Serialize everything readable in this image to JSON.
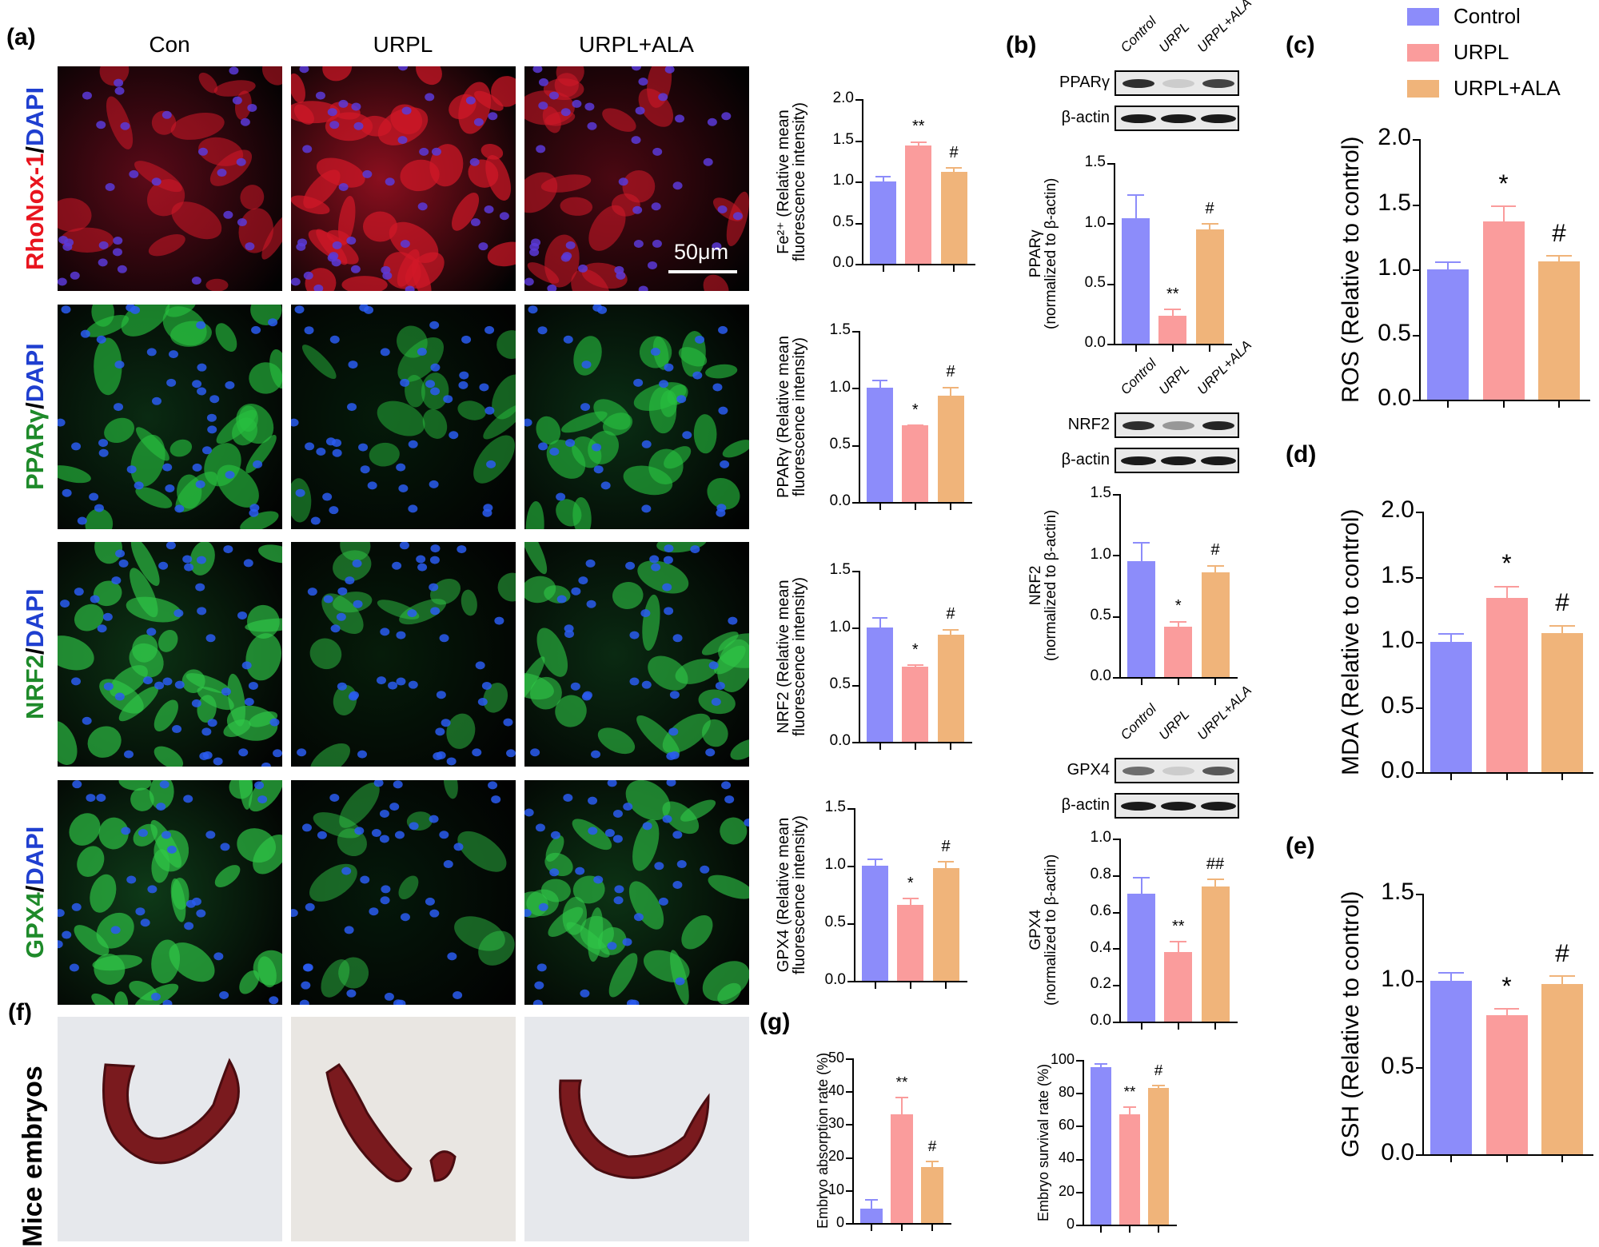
{
  "colors": {
    "control": "#8c8cfa",
    "urpl": "#fa9c9c",
    "urpl_ala": "#f0b47a"
  },
  "panel_letters": {
    "a": "(a)",
    "b": "(b)",
    "c": "(c)",
    "d": "(d)",
    "e": "(e)",
    "f": "(f)",
    "g": "(g)"
  },
  "panel_a": {
    "column_headers": [
      "Con",
      "URPL",
      "URPL+ALA"
    ],
    "row_labels": [
      {
        "stain": "RhoNox-1",
        "stain_color": "#e8141e",
        "counter": "DAPI",
        "counter_color": "#1f3fd0"
      },
      {
        "stain": "PPARγ",
        "stain_color": "#1e8a2a",
        "counter": "DAPI",
        "counter_color": "#1f3fd0"
      },
      {
        "stain": "NRF2",
        "stain_color": "#1e8a2a",
        "counter": "DAPI",
        "counter_color": "#1f3fd0"
      },
      {
        "stain": "GPX4",
        "stain_color": "#1e8a2a",
        "counter": "DAPI",
        "counter_color": "#1f3fd0"
      }
    ],
    "separator": "/",
    "scale_bar": "50μm"
  },
  "panel_b": {
    "lane_labels": [
      "Control",
      "URPL",
      "URPL+ALA"
    ],
    "blots": [
      {
        "target": "PPARγ",
        "loading": "β-actin",
        "band_intensity": [
          0.9,
          0.15,
          0.8
        ]
      },
      {
        "target": "NRF2",
        "loading": "β-actin",
        "band_intensity": [
          0.9,
          0.4,
          0.95
        ]
      },
      {
        "target": "GPX4",
        "loading": "β-actin",
        "band_intensity": [
          0.6,
          0.15,
          0.7
        ]
      }
    ]
  },
  "panel_f": {
    "row_label": "Mice embryos"
  },
  "legend": [
    {
      "label": "Control",
      "color": "#8c8cfa"
    },
    {
      "label": "URPL",
      "color": "#fa9c9c"
    },
    {
      "label": "URPL+ALA",
      "color": "#f0b47a"
    }
  ],
  "chart_data": [
    {
      "id": "fe2",
      "panel": "a",
      "type": "bar",
      "categories": [
        "Control",
        "URPL",
        "URPL+ALA"
      ],
      "values": [
        1.0,
        1.44,
        1.12
      ],
      "errors_upper": [
        1.07,
        1.49,
        1.17
      ],
      "significance": [
        "",
        "**",
        "#"
      ],
      "ylabel_lines": [
        "Fe²⁺ (Relative mean",
        "fluorescence intensity)"
      ],
      "ylim": [
        0,
        2.0
      ],
      "yticks": [
        "0.0",
        "0.5",
        "1.0",
        "1.5",
        "2.0"
      ],
      "grid": false
    },
    {
      "id": "ppar_if",
      "panel": "a",
      "type": "bar",
      "categories": [
        "Control",
        "URPL",
        "URPL+ALA"
      ],
      "values": [
        1.0,
        0.67,
        0.93
      ],
      "errors_upper": [
        1.07,
        0.68,
        1.01
      ],
      "significance": [
        "",
        "*",
        "#"
      ],
      "ylabel_lines": [
        "PPARγ (Relative mean",
        "fluorescence intensity)"
      ],
      "ylim": [
        0,
        1.5
      ],
      "yticks": [
        "0.0",
        "0.5",
        "1.0",
        "1.5"
      ],
      "grid": false
    },
    {
      "id": "nrf2_if",
      "panel": "a",
      "type": "bar",
      "categories": [
        "Control",
        "URPL",
        "URPL+ALA"
      ],
      "values": [
        1.0,
        0.66,
        0.94
      ],
      "errors_upper": [
        1.09,
        0.68,
        0.99
      ],
      "significance": [
        "",
        "*",
        "#"
      ],
      "ylabel_lines": [
        "NRF2 (Relative mean",
        "fluorescence intensity)"
      ],
      "ylim": [
        0,
        1.5
      ],
      "yticks": [
        "0.0",
        "0.5",
        "1.0",
        "1.5"
      ],
      "grid": false
    },
    {
      "id": "gpx4_if",
      "panel": "a",
      "type": "bar",
      "categories": [
        "Control",
        "URPL",
        "URPL+ALA"
      ],
      "values": [
        1.0,
        0.66,
        0.98
      ],
      "errors_upper": [
        1.06,
        0.72,
        1.04
      ],
      "significance": [
        "",
        "*",
        "#"
      ],
      "ylabel_lines": [
        "GPX4 (Relative mean",
        "fluorescence intensity)"
      ],
      "ylim": [
        0,
        1.5
      ],
      "yticks": [
        "0.0",
        "0.5",
        "1.0",
        "1.5"
      ],
      "grid": false
    },
    {
      "id": "ppar_wb",
      "panel": "b",
      "type": "bar",
      "categories": [
        "Control",
        "URPL",
        "URPL+ALA"
      ],
      "values": [
        1.04,
        0.23,
        0.95
      ],
      "errors_upper": [
        1.24,
        0.29,
        1.0
      ],
      "significance": [
        "",
        "**",
        "#"
      ],
      "ylabel_lines": [
        "PPARγ",
        "(normalized to β-actin)"
      ],
      "ylim": [
        0,
        1.5
      ],
      "yticks": [
        "0.0",
        "0.5",
        "1.0",
        "1.5"
      ],
      "grid": false
    },
    {
      "id": "nrf2_wb",
      "panel": "b",
      "type": "bar",
      "categories": [
        "Control",
        "URPL",
        "URPL+ALA"
      ],
      "values": [
        0.95,
        0.41,
        0.86
      ],
      "errors_upper": [
        1.11,
        0.46,
        0.92
      ],
      "significance": [
        "",
        "*",
        "#"
      ],
      "ylabel_lines": [
        "NRF2",
        "(normalized to β-actin)"
      ],
      "ylim": [
        0,
        1.5
      ],
      "yticks": [
        "0.0",
        "0.5",
        "1.0",
        "1.5"
      ],
      "grid": false
    },
    {
      "id": "gpx4_wb",
      "panel": "b",
      "type": "bar",
      "categories": [
        "Control",
        "URPL",
        "URPL+ALA"
      ],
      "values": [
        0.7,
        0.38,
        0.74
      ],
      "errors_upper": [
        0.79,
        0.44,
        0.78
      ],
      "significance": [
        "",
        "**",
        "##"
      ],
      "ylabel_lines": [
        "GPX4",
        "(normalized to β-actin)"
      ],
      "ylim": [
        0,
        1.0
      ],
      "yticks": [
        "0.0",
        "0.2",
        "0.4",
        "0.6",
        "0.8",
        "1.0"
      ],
      "grid": false
    },
    {
      "id": "ros",
      "panel": "c",
      "type": "bar",
      "categories": [
        "Control",
        "URPL",
        "URPL+ALA"
      ],
      "values": [
        1.0,
        1.37,
        1.06
      ],
      "errors_upper": [
        1.06,
        1.49,
        1.11
      ],
      "significance": [
        "",
        "*",
        "#"
      ],
      "ylabel_lines": [
        "ROS (Relative to control)"
      ],
      "ylim": [
        0,
        2.0
      ],
      "yticks": [
        "0.0",
        "0.5",
        "1.0",
        "1.5",
        "2.0"
      ],
      "grid": false
    },
    {
      "id": "mda",
      "panel": "d",
      "type": "bar",
      "categories": [
        "Control",
        "URPL",
        "URPL+ALA"
      ],
      "values": [
        1.0,
        1.34,
        1.07
      ],
      "errors_upper": [
        1.07,
        1.43,
        1.13
      ],
      "significance": [
        "",
        "*",
        "#"
      ],
      "ylabel_lines": [
        "MDA (Relative to control)"
      ],
      "ylim": [
        0,
        2.0
      ],
      "yticks": [
        "0.0",
        "0.5",
        "1.0",
        "1.5",
        "2.0"
      ],
      "grid": false
    },
    {
      "id": "gsh",
      "panel": "e",
      "type": "bar",
      "categories": [
        "Control",
        "URPL",
        "URPL+ALA"
      ],
      "values": [
        1.0,
        0.8,
        0.98
      ],
      "errors_upper": [
        1.05,
        0.84,
        1.03
      ],
      "significance": [
        "",
        "*",
        "#"
      ],
      "ylabel_lines": [
        "GSH (Relative to control)"
      ],
      "ylim": [
        0,
        1.5
      ],
      "yticks": [
        "0.0",
        "0.5",
        "1.0",
        "1.5"
      ],
      "grid": false
    },
    {
      "id": "absorption",
      "panel": "g",
      "type": "bar",
      "categories": [
        "Control",
        "URPL",
        "URPL+ALA"
      ],
      "values": [
        4.4,
        33.0,
        17.0
      ],
      "errors_upper": [
        7.3,
        38.3,
        19.0
      ],
      "significance": [
        "",
        "**",
        "#"
      ],
      "ylabel_lines": [
        "Embryo absorption rate (%)"
      ],
      "ylim": [
        0,
        50
      ],
      "yticks": [
        "0",
        "10",
        "20",
        "30",
        "40",
        "50"
      ],
      "grid": false
    },
    {
      "id": "survival",
      "panel": "g",
      "type": "bar",
      "categories": [
        "Control",
        "URPL",
        "URPL+ALA"
      ],
      "values": [
        95.5,
        67.0,
        83.0
      ],
      "errors_upper": [
        98.0,
        72.0,
        85.0
      ],
      "significance": [
        "",
        "**",
        "#"
      ],
      "ylabel_lines": [
        "Embryo survival rate (%)"
      ],
      "ylim": [
        0,
        100
      ],
      "yticks": [
        "0",
        "20",
        "40",
        "60",
        "80",
        "100"
      ],
      "grid": false
    }
  ]
}
